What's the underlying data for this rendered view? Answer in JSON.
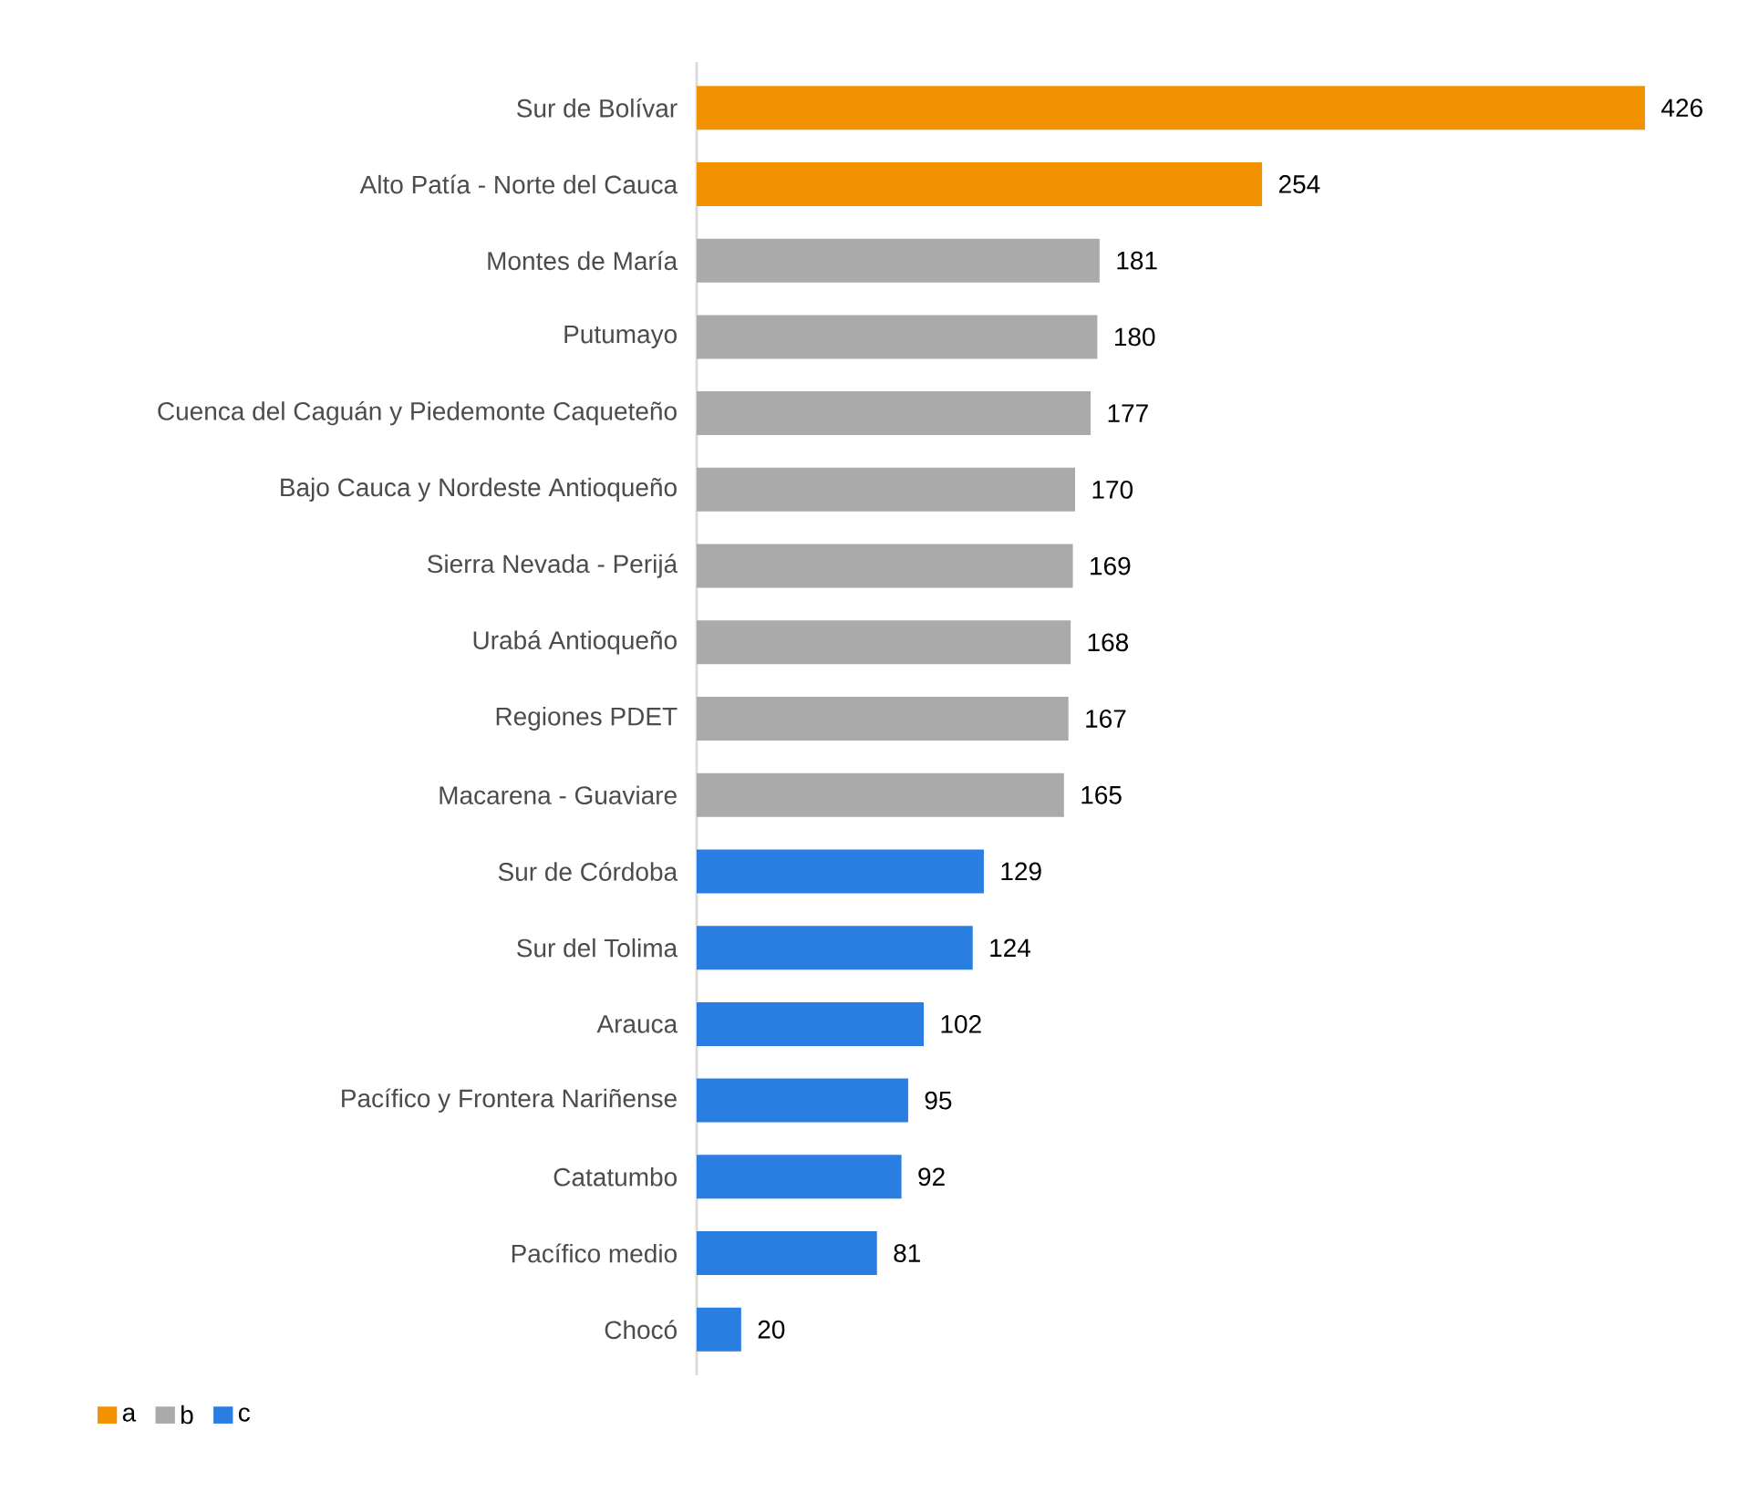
{
  "chart_data": {
    "type": "bar",
    "orientation": "horizontal",
    "legend": "bottom left",
    "data_labels": true,
    "categories": [
      "Sur de Bolívar",
      "Alto Patía - Norte del Cauca",
      "Montes de María",
      "Putumayo",
      "Cuenca del Caguán y Piedemonte Caqueteño",
      "Bajo Cauca y Nordeste Antioqueño",
      "Sierra Nevada - Perijá",
      "Urabá Antioqueño",
      "Regiones PDET",
      "Macarena - Guaviare",
      "Sur de Córdoba",
      "Sur del Tolima",
      "Arauca",
      "Pacífico y Frontera Nariñense",
      "Catatumbo",
      "Pacífico medio",
      "Chocó"
    ],
    "series": [
      {
        "name": "a",
        "color": "#f39200",
        "values": [
          426,
          254,
          null,
          null,
          null,
          null,
          null,
          null,
          null,
          null,
          null,
          null,
          null,
          null,
          null,
          null,
          null
        ]
      },
      {
        "name": "b",
        "color": "#aaaaaa",
        "values": [
          null,
          null,
          181,
          180,
          177,
          170,
          169,
          168,
          167,
          165,
          null,
          null,
          null,
          null,
          null,
          null,
          null
        ]
      },
      {
        "name": "c",
        "color": "#2a7de1",
        "values": [
          null,
          null,
          null,
          null,
          null,
          null,
          null,
          null,
          null,
          null,
          129,
          124,
          102,
          95,
          92,
          81,
          20
        ]
      }
    ]
  }
}
